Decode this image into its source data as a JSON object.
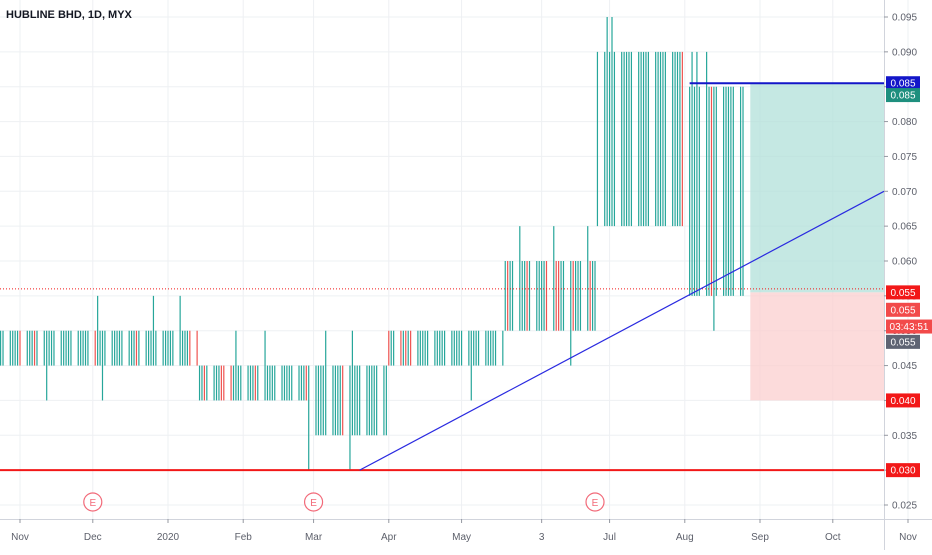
{
  "symbol_title": "HUBLINE BHD, 1D, MYX",
  "chart_data": {
    "type": "bar",
    "subtype": "ohlc",
    "title": "HUBLINE BHD, 1D, MYX",
    "xlabel": "",
    "ylabel": "",
    "ylim": [
      0.0235,
      0.0975
    ],
    "grid": true,
    "price_axis_ticks": [
      "0.095",
      "0.090",
      "0.085",
      "0.080",
      "0.075",
      "0.070",
      "0.065",
      "0.060",
      "0.055",
      "0.050",
      "0.045",
      "0.040",
      "0.035",
      "0.030",
      "0.025"
    ],
    "time_axis_ticks": [
      {
        "label": "Nov",
        "date": "2019-11-01"
      },
      {
        "label": "Dec",
        "date": "2019-12-01"
      },
      {
        "label": "2020",
        "date": "2020-01-01"
      },
      {
        "label": "Feb",
        "date": "2020-02-01"
      },
      {
        "label": "Mar",
        "date": "2020-03-01"
      },
      {
        "label": "Apr",
        "date": "2020-04-01"
      },
      {
        "label": "May",
        "date": "2020-05-01"
      },
      {
        "label": "3",
        "date": "2020-06-03"
      },
      {
        "label": "Jul",
        "date": "2020-07-01"
      },
      {
        "label": "Aug",
        "date": "2020-08-01"
      },
      {
        "label": "Sep",
        "date": "2020-09-01"
      },
      {
        "label": "Oct",
        "date": "2020-10-01"
      },
      {
        "label": "Nov",
        "date": "2020-11-01"
      }
    ],
    "earnings_markers": [
      {
        "label": "E",
        "date": "2019-12-01"
      },
      {
        "label": "E",
        "date": "2020-03-01"
      },
      {
        "label": "E",
        "date": "2020-06-25"
      }
    ],
    "bars_segments": [
      {
        "start": "2019-10-17",
        "end": "2020-01-13",
        "low": 0.045,
        "high": 0.05
      },
      {
        "start": "2020-01-14",
        "end": "2020-02-27",
        "low": 0.04,
        "high": 0.045
      },
      {
        "start": "2020-02-28",
        "end": "2020-03-31",
        "low": 0.035,
        "high": 0.045
      },
      {
        "start": "2020-04-01",
        "end": "2020-05-18",
        "low": 0.045,
        "high": 0.05
      },
      {
        "start": "2020-05-19",
        "end": "2020-06-25",
        "low": 0.05,
        "high": 0.06
      },
      {
        "start": "2020-06-26",
        "end": "2020-07-31",
        "low": 0.065,
        "high": 0.09
      },
      {
        "start": "2020-08-01",
        "end": "2020-08-25",
        "low": 0.055,
        "high": 0.085
      }
    ],
    "horizontal_lines": [
      {
        "price": 0.03,
        "color": "#f21818",
        "style": "solid"
      },
      {
        "price": 0.0855,
        "color": "#1316c9",
        "style": "solid",
        "from": "2020-08-03"
      },
      {
        "price": 0.056,
        "color": "#f21818",
        "style": "dotted"
      }
    ],
    "trendline": {
      "from": {
        "date": "2020-03-20",
        "price": 0.03
      },
      "to": {
        "date": "2020-11-22",
        "price": 0.07
      },
      "color": "#2a2ae0"
    },
    "position_tool": {
      "start": "2020-08-28",
      "end": "2020-11-22",
      "entry": 0.0555,
      "target": 0.0855,
      "stop": 0.04,
      "profit_color": "#b2e0d9",
      "loss_color": "#fbcfcf"
    },
    "price_labels": [
      {
        "text": "0.085",
        "price": 0.0855,
        "bg": "#1316c9"
      },
      {
        "text": "0.085",
        "price": 0.0838,
        "bg": "#1e8f7e"
      },
      {
        "text": "0.055",
        "price": 0.0555,
        "bg": "#f21818"
      },
      {
        "text": "0.055",
        "price": 0.053,
        "bg": "#f24a4a"
      },
      {
        "text": "03:43:51",
        "price": 0.0506,
        "bg": "#f24a4a"
      },
      {
        "text": "0.055",
        "price": 0.0484,
        "bg": "#5e6473"
      },
      {
        "text": "0.040",
        "price": 0.04,
        "bg": "#f21818"
      },
      {
        "text": "0.030",
        "price": 0.03,
        "bg": "#f21818"
      }
    ],
    "colors": {
      "up": "#26a69a",
      "down": "#ef5350"
    }
  }
}
